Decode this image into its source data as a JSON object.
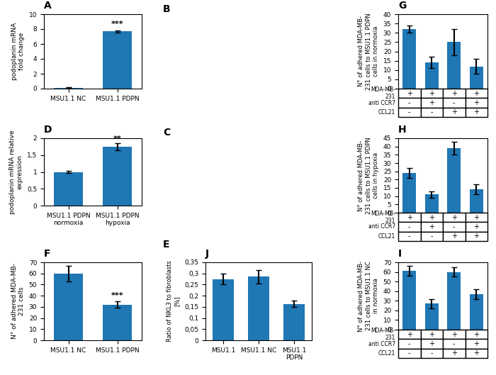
{
  "chart_data": [
    {
      "type": "bar",
      "title": "A",
      "categories": [
        "MSU1.1 NC",
        "MSU1.1 PDPN"
      ],
      "values": [
        0.12,
        7.7
      ],
      "errors": [
        0.05,
        0.15
      ],
      "ylabel": "podoplanin mRNA\nfold change",
      "ylim": [
        0,
        10
      ],
      "yticks": [
        0,
        2,
        4,
        6,
        8,
        10
      ],
      "annotations": [
        {
          "text": "***",
          "x": "MSU1.1 PDPN",
          "y": 8.2
        }
      ]
    },
    {
      "type": "bar",
      "title": "D",
      "categories": [
        "MSU1.1 PDPN\nnormoxia",
        "MSU1.1 PDPN\nhypoxia"
      ],
      "values": [
        1.0,
        1.75
      ],
      "errors": [
        0.04,
        0.1
      ],
      "ylabel": "podoplanin mRNA relative\nexpression",
      "ylim": [
        0,
        2
      ],
      "yticks": [
        0,
        {
          "value": 0.5,
          "label": "0,5"
        },
        1,
        {
          "value": 1.5,
          "label": "1,5"
        },
        2
      ],
      "annotations": [
        {
          "text": "**",
          "x": "MSU1.1 PDPN\nhypoxia",
          "y": 1.88
        }
      ]
    },
    {
      "type": "bar",
      "title": "F",
      "categories": [
        "MSU1.1 NC",
        "MSU1.1 PDPN"
      ],
      "values": [
        60,
        32
      ],
      "errors": [
        7,
        3
      ],
      "ylabel": "N° of adhered MDA-MB-\n231 cells",
      "ylim": [
        0,
        70
      ],
      "yticks": [
        0,
        10,
        20,
        30,
        40,
        50,
        60,
        70
      ],
      "annotations": [
        {
          "text": "***",
          "x": "MSU1.1 PDPN",
          "y": 37
        }
      ]
    },
    {
      "type": "bar",
      "title": "J",
      "categories": [
        "MSU1.1",
        "MSU1.1 NC",
        "MSU1.1\nPDPN"
      ],
      "values": [
        0.275,
        0.285,
        0.163
      ],
      "errors": [
        0.025,
        0.03,
        0.015
      ],
      "ylabel": "Ratio of NKL3 to fibroblasts\n[%]",
      "ylim": [
        0,
        0.35
      ],
      "yticks": [
        0,
        {
          "value": 0.05,
          "label": "0,05"
        },
        {
          "value": 0.1,
          "label": "0,1"
        },
        {
          "value": 0.15,
          "label": "0,15"
        },
        {
          "value": 0.2,
          "label": "0,2"
        },
        {
          "value": 0.25,
          "label": "0,25"
        },
        {
          "value": 0.3,
          "label": "0,3"
        },
        {
          "value": 0.35,
          "label": "0,35"
        }
      ]
    },
    {
      "type": "bar",
      "title": "G",
      "categories": [
        null,
        null,
        null,
        null
      ],
      "values": [
        32,
        14,
        25,
        12
      ],
      "errors": [
        2,
        3,
        7,
        4
      ],
      "ylabel": "N° of adhered MDA-MB-\n231 cells to MSU1.1 PDPN\ncells in normoxia",
      "ylim": [
        0,
        40
      ],
      "yticks": [
        0,
        5,
        10,
        15,
        20,
        25,
        30,
        35,
        40
      ],
      "table": {
        "rows": [
          "MDA-MB-\n231",
          "anti CCR7",
          "CCL21"
        ],
        "cells": [
          [
            "+",
            "+",
            "+",
            "+"
          ],
          [
            "-",
            "+",
            "-",
            "+"
          ],
          [
            "-",
            "-",
            "+",
            "+"
          ]
        ]
      }
    },
    {
      "type": "bar",
      "title": "H",
      "categories": [
        null,
        null,
        null,
        null
      ],
      "values": [
        24,
        11,
        39,
        14
      ],
      "errors": [
        3,
        2,
        4,
        3
      ],
      "ylabel": "N° of adhered MDA-MB-\n231 cells to MSU1.1 PDPN\ncells in hypoxia",
      "ylim": [
        0,
        45
      ],
      "yticks": [
        0,
        5,
        10,
        15,
        20,
        25,
        30,
        35,
        40,
        45
      ],
      "table": {
        "rows": [
          "MDA-MB-\n231",
          "anti CCR7",
          "CCL21"
        ],
        "cells": [
          [
            "+",
            "+",
            "+",
            "+"
          ],
          [
            "-",
            "+",
            "-",
            "+"
          ],
          [
            "-",
            "-",
            "+",
            "+"
          ]
        ]
      }
    },
    {
      "type": "bar",
      "title": "I",
      "categories": [
        null,
        null,
        null,
        null
      ],
      "values": [
        61,
        27,
        60,
        37
      ],
      "errors": [
        5,
        5,
        5,
        5
      ],
      "ylabel": "N° of adhered MDA-MB-\n231 cells to MSU1.1 NC\nin normoxia",
      "ylim": [
        0,
        70
      ],
      "yticks": [
        0,
        10,
        20,
        30,
        40,
        50,
        60,
        70
      ],
      "table": {
        "rows": [
          "MDA-MB-\n231",
          "anti CCR7",
          "CCL21"
        ],
        "cells": [
          [
            "+",
            "+",
            "+",
            "+"
          ],
          [
            "-",
            "+",
            "-",
            "+"
          ],
          [
            "-",
            "-",
            "+",
            "+"
          ]
        ]
      }
    }
  ],
  "annotations": [
    {
      "text": "B"
    },
    {
      "text": "C"
    },
    {
      "text": "E"
    }
  ]
}
